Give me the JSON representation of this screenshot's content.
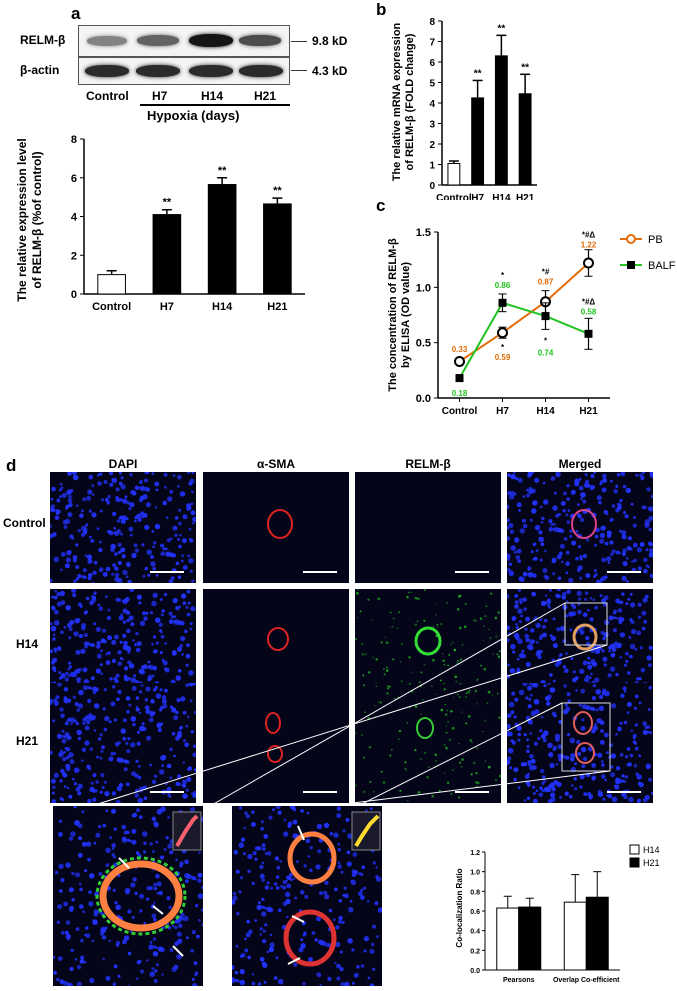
{
  "panel_labels": {
    "a": "a",
    "b": "b",
    "c": "c",
    "d": "d"
  },
  "western_blot": {
    "rows": [
      {
        "label": "RELM-β",
        "mw": "9.8 kD",
        "intensities": [
          0.45,
          0.6,
          0.95,
          0.7
        ]
      },
      {
        "label": "β-actin",
        "mw": "4.3 kD",
        "intensities": [
          0.85,
          0.85,
          0.85,
          0.85
        ]
      }
    ],
    "lanes": [
      "Control",
      "H7",
      "H14",
      "H21"
    ],
    "group_label": "Hypoxia (days)"
  },
  "colors": {
    "bar_fill": "#000000",
    "control_fill": "#ffffff",
    "pb": "#e36c09",
    "balf": "#22c322",
    "dapi": "#2233ff",
    "sma": "#dd2222",
    "relm": "#22bb22"
  },
  "chart_data": [
    {
      "id": "a",
      "type": "bar",
      "categories": [
        "Control",
        "H7",
        "H14",
        "H21"
      ],
      "values": [
        1.0,
        4.1,
        5.65,
        4.65
      ],
      "errors": [
        0.2,
        0.25,
        0.35,
        0.3
      ],
      "significance": [
        "",
        "**",
        "**",
        "**"
      ],
      "ylabel_line1": "The relative expression level",
      "ylabel_line2": "of RELM-β (%of control)",
      "ylim": [
        0,
        8
      ],
      "yticks": [
        0,
        2,
        4,
        6,
        8
      ]
    },
    {
      "id": "b",
      "type": "bar",
      "categories": [
        "Control",
        "H7",
        "H14",
        "H21"
      ],
      "values": [
        1.05,
        4.25,
        6.3,
        4.45
      ],
      "errors": [
        0.12,
        0.85,
        1.0,
        0.95
      ],
      "significance": [
        "",
        "**",
        "**",
        "**"
      ],
      "ylabel_line1": "The relative mRNA expression",
      "ylabel_line2": "of RELM-β (FOLD change)",
      "ylim": [
        0,
        8
      ],
      "yticks": [
        0,
        1,
        2,
        3,
        4,
        5,
        6,
        7,
        8
      ]
    },
    {
      "id": "c",
      "type": "line",
      "categories": [
        "Control",
        "H7",
        "H14",
        "H21"
      ],
      "ylabel_line1": "The concentration of RELM-β",
      "ylabel_line2": "by ELISA (OD value)",
      "ylim": [
        0,
        1.5
      ],
      "yticks": [
        "0.0",
        "0.5",
        "1.0",
        "1.5"
      ],
      "legend_position": "top-right",
      "series": [
        {
          "name": "PB",
          "values": [
            0.33,
            0.59,
            0.87,
            1.22
          ],
          "errors": [
            0.03,
            0.05,
            0.1,
            0.12
          ],
          "labels": [
            "0.33",
            "0.59",
            "0.87",
            "1.22"
          ],
          "sig": [
            "",
            "*",
            "*#",
            "*#Δ"
          ]
        },
        {
          "name": "BALF",
          "values": [
            0.18,
            0.86,
            0.74,
            0.58
          ],
          "errors": [
            0.03,
            0.08,
            0.12,
            0.14
          ],
          "labels": [
            "0.18",
            "0.86",
            "0.74",
            "0.58"
          ],
          "sig": [
            "",
            "*",
            "*",
            "*#Δ"
          ]
        }
      ]
    },
    {
      "id": "d-bottom",
      "type": "bar",
      "categories": [
        "Pearsons",
        "Overlap Co-efficient"
      ],
      "ylabel": "Co-localization Ratio",
      "ylim": [
        0,
        1.2
      ],
      "yticks": [
        "0.0",
        "0.2",
        "0.4",
        "0.6",
        "0.8",
        "1.0",
        "1.2"
      ],
      "legend_position": "top-right",
      "series": [
        {
          "name": "H14",
          "values": [
            0.63,
            0.69
          ],
          "errors": [
            0.12,
            0.28
          ]
        },
        {
          "name": "H21",
          "values": [
            0.64,
            0.74
          ],
          "errors": [
            0.09,
            0.26
          ]
        }
      ]
    }
  ],
  "microscopy": {
    "columns": [
      "DAPI",
      "α-SMA",
      "RELM-β",
      "Merged"
    ],
    "rows": [
      "Control",
      "H14",
      "H21"
    ]
  }
}
